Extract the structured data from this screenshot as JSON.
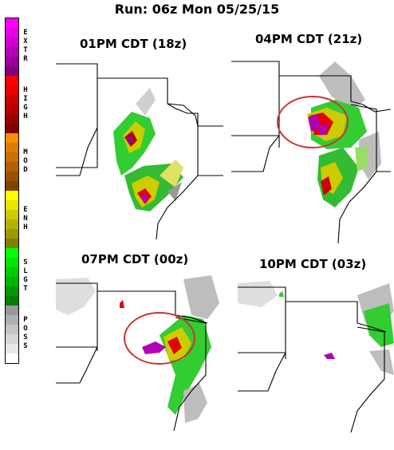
{
  "run_title": "Run: 06z Mon 05/25/15",
  "legend": {
    "categories": [
      {
        "label": "EXTR",
        "colors": [
          "#ff00ff",
          "#e600e6",
          "#cc00cc",
          "#b300b3",
          "#990099",
          "#80007f"
        ]
      },
      {
        "label": "HIGH",
        "colors": [
          "#ff0000",
          "#e60000",
          "#cc0000",
          "#b30000",
          "#990000",
          "#800000"
        ]
      },
      {
        "label": "MOD",
        "colors": [
          "#ff8c00",
          "#e07a00",
          "#cc6e00",
          "#b36000",
          "#995200",
          "#804400"
        ]
      },
      {
        "label": "ENH",
        "colors": [
          "#ffff00",
          "#e6e600",
          "#cccc00",
          "#b3b300",
          "#999900",
          "#808000"
        ]
      },
      {
        "label": "SLGT",
        "colors": [
          "#00ff00",
          "#00e600",
          "#00cc00",
          "#00b300",
          "#009900",
          "#008000"
        ]
      },
      {
        "label": "POSS",
        "colors": [
          "#999999",
          "#b0b0b0",
          "#c4c4c4",
          "#d6d6d6",
          "#e8e8e8",
          "#ffffff"
        ]
      }
    ]
  },
  "panels": [
    {
      "title": "01PM CDT (18z)"
    },
    {
      "title": "04PM CDT (21z)"
    },
    {
      "title": "07PM CDT (00z)"
    },
    {
      "title": "10PM CDT (03z)"
    }
  ],
  "colors": {
    "circle": "#cc3333",
    "map_line": "#000000",
    "grey": "#bdbdbd"
  }
}
